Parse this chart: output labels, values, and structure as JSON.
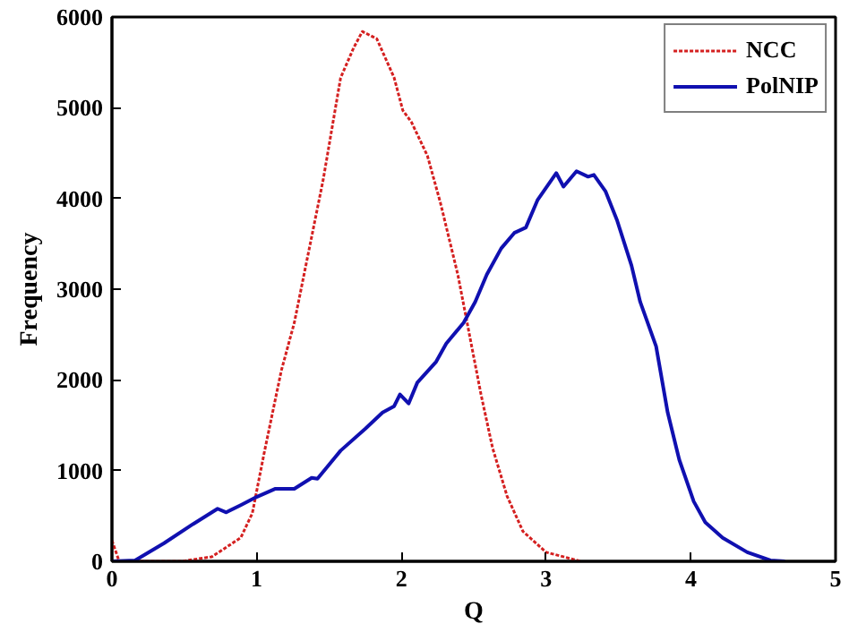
{
  "chart_data": {
    "type": "line",
    "xlabel": "Q",
    "ylabel": "Frequency",
    "xlim": [
      0,
      5
    ],
    "ylim": [
      0,
      6000
    ],
    "xticks": [
      0,
      1,
      2,
      3,
      4,
      5
    ],
    "yticks": [
      0,
      1000,
      2000,
      3000,
      4000,
      5000,
      6000
    ],
    "grid": false,
    "legend": "top right",
    "marker": "none",
    "series": [
      {
        "name": "NCC",
        "color": "#d42020",
        "line_style": "dotted",
        "x": [
          0,
          0.05,
          0.48,
          0.69,
          0.89,
          0.97,
          1.05,
          1.17,
          1.26,
          1.36,
          1.46,
          1.58,
          1.67,
          1.73,
          1.83,
          1.95,
          2.01,
          2.07,
          2.18,
          2.27,
          2.39,
          2.47,
          2.55,
          2.63,
          2.73,
          2.84,
          3.0,
          3.24
        ],
        "values": [
          230,
          0,
          0,
          50,
          260,
          530,
          1180,
          2100,
          2630,
          3420,
          4210,
          5330,
          5660,
          5840,
          5760,
          5330,
          4970,
          4840,
          4470,
          3950,
          3160,
          2500,
          1840,
          1250,
          720,
          330,
          100,
          0
        ]
      },
      {
        "name": "PolNIP",
        "color": "#1010b0",
        "line_style": "solid",
        "x": [
          0,
          0.16,
          0.36,
          0.56,
          0.73,
          0.79,
          0.89,
          1.0,
          1.13,
          1.26,
          1.38,
          1.42,
          1.58,
          1.75,
          1.87,
          1.95,
          1.99,
          2.05,
          2.11,
          2.24,
          2.31,
          2.43,
          2.51,
          2.59,
          2.69,
          2.78,
          2.86,
          2.94,
          3.07,
          3.12,
          3.21,
          3.29,
          3.33,
          3.41,
          3.49,
          3.59,
          3.65,
          3.76,
          3.84,
          3.92,
          4.02,
          4.1,
          4.22,
          4.39,
          4.55,
          4.65
        ],
        "values": [
          0,
          10,
          200,
          410,
          580,
          540,
          620,
          710,
          800,
          800,
          920,
          910,
          1220,
          1460,
          1640,
          1710,
          1840,
          1740,
          1970,
          2200,
          2400,
          2630,
          2860,
          3160,
          3450,
          3620,
          3680,
          3980,
          4280,
          4130,
          4300,
          4240,
          4260,
          4080,
          3760,
          3260,
          2860,
          2370,
          1640,
          1120,
          660,
          430,
          260,
          100,
          10,
          0
        ]
      }
    ]
  }
}
